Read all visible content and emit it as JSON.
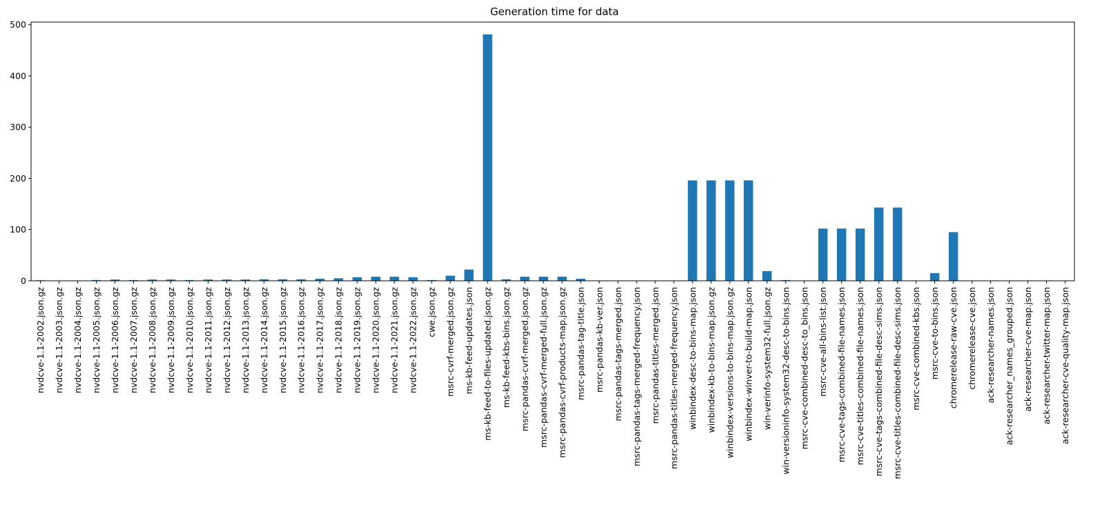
{
  "chart_data": {
    "type": "bar",
    "title": "Generation time for data",
    "xlabel": "",
    "ylabel": "",
    "ylim": [
      0,
      505
    ],
    "yticks": [
      0,
      100,
      200,
      300,
      400,
      500
    ],
    "bar_color": "#1f77b4",
    "grid": false,
    "legend": "none",
    "categories": [
      "nvdcve-1.1-2002.json.gz",
      "nvdcve-1.1-2003.json.gz",
      "nvdcve-1.1-2004.json.gz",
      "nvdcve-1.1-2005.json.gz",
      "nvdcve-1.1-2006.json.gz",
      "nvdcve-1.1-2007.json.gz",
      "nvdcve-1.1-2008.json.gz",
      "nvdcve-1.1-2009.json.gz",
      "nvdcve-1.1-2010.json.gz",
      "nvdcve-1.1-2011.json.gz",
      "nvdcve-1.1-2012.json.gz",
      "nvdcve-1.1-2013.json.gz",
      "nvdcve-1.1-2014.json.gz",
      "nvdcve-1.1-2015.json.gz",
      "nvdcve-1.1-2016.json.gz",
      "nvdcve-1.1-2017.json.gz",
      "nvdcve-1.1-2018.json.gz",
      "nvdcve-1.1-2019.json.gz",
      "nvdcve-1.1-2020.json.gz",
      "nvdcve-1.1-2021.json.gz",
      "nvdcve-1.1-2022.json.gz",
      "cwe.json.gz",
      "msrc-cvrf-merged.json.gz",
      "ms-kb-feed-updates.json",
      "ms-kb-feed-to-files-updated.json.gz",
      "ms-kb-feed-kbs-bins.json.gz",
      "msrc-pandas-cvrf-merged.json.gz",
      "msrc-pandas-cvrf-merged-full.json.gz",
      "msrc-pandas-cvrf-products-map.json.gz",
      "msrc-pandas-tag-title.json",
      "msrc-pandas-kb-ver.json",
      "msrc-pandas-tags-merged.json",
      "msrc-pandas-tags-merged-frequency.json",
      "msrc-pandas-titles-merged.json",
      "msrc-pandas-titles-merged-frequency.json",
      "winbindex-desc-to-bins-map.json",
      "winbindex-kb-to-bins-map.json.gz",
      "winbindex-versions-to-bins-map.json.gz",
      "winbindex-winver-to-build-map.json",
      "win-verinfo-system32-full.json.gz",
      "win-versioninfo-system32-desc-to-bins.json",
      "msrc-cve-combined-desc-to_bins.json",
      "msrc-cve-all-bins-list.json",
      "msrc-cve-tags-combined-file-names.json",
      "msrc-cve-titles-combined-file-names.json",
      "msrc-cve-tags-combined-file-desc-sims.json",
      "msrc-cve-titles-combined-file-desc-sims.json",
      "msrc-cve-combined-kbs.json",
      "msrc-cve-to-bins.json",
      "chromerelease-raw-cve.json",
      "chromerelease-cve.json",
      "ack-researcher-names.json",
      "ack-researcher_names_grouped.json",
      "ack-researcher-cve-map.json",
      "ack-researcher-twitter-map.json",
      "ack-researcher-cve-quality-map.json"
    ],
    "values": [
      1,
      0.3,
      0.3,
      1.5,
      2.5,
      1.5,
      2.5,
      2.5,
      1.5,
      2.5,
      2.5,
      2.5,
      3,
      3,
      3,
      4,
      5,
      7,
      8,
      8,
      7,
      1.5,
      10,
      22,
      481,
      3,
      8,
      8,
      8,
      4,
      0.3,
      0.3,
      0.3,
      0.3,
      0.3,
      196,
      196,
      196,
      196,
      19,
      1.5,
      0.3,
      102,
      102,
      102,
      143,
      143,
      0.3,
      15,
      95,
      0.3,
      0.3,
      0.3,
      0.3,
      0.3,
      0.3
    ]
  }
}
